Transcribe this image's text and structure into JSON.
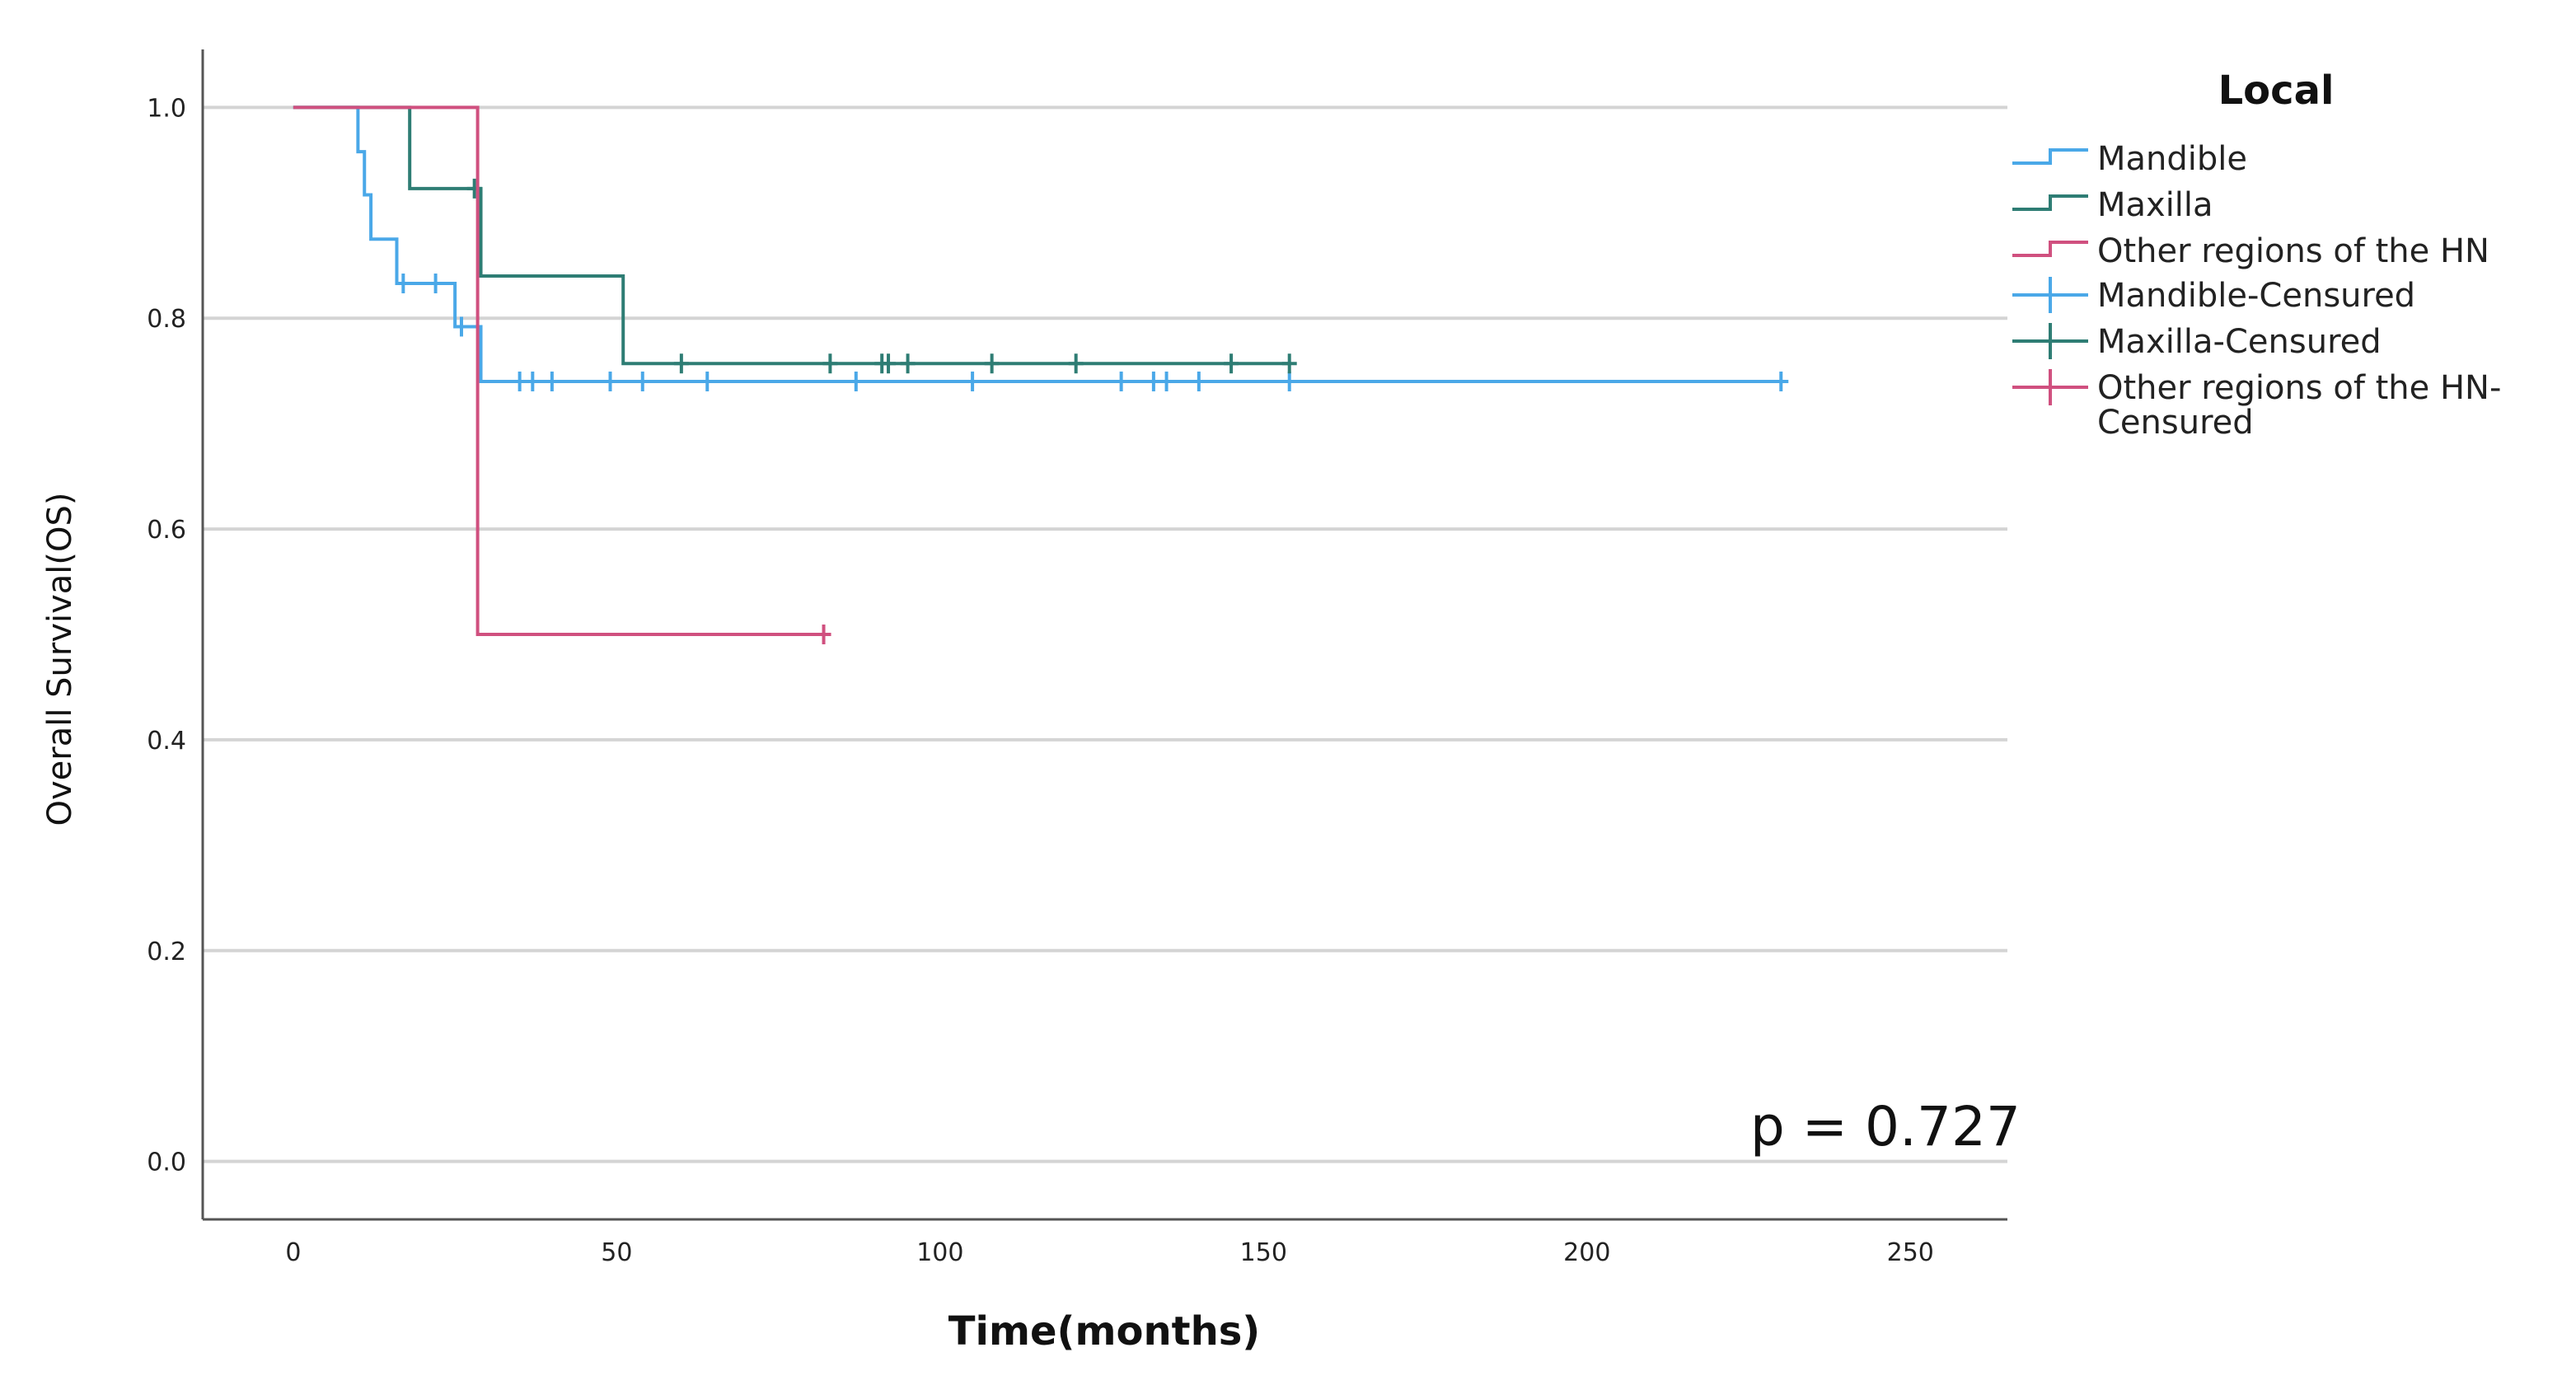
{
  "chart_data": {
    "type": "line",
    "subtype": "kaplan-meier",
    "xlabel": "Time(months)",
    "ylabel": "Overall Survival(OS)",
    "xlim": [
      -14,
      265
    ],
    "ylim": [
      -0.055,
      1.055
    ],
    "xticks": [
      0,
      50,
      100,
      150,
      200,
      250
    ],
    "xtick_labels": [
      "0",
      "50",
      "100",
      "150",
      "200",
      "250"
    ],
    "yticks": [
      0.0,
      0.2,
      0.4,
      0.6,
      0.8,
      1.0
    ],
    "ytick_labels": [
      "0.0",
      "0.2",
      "0.4",
      "0.6",
      "0.8",
      "1.0"
    ],
    "grid": "horizontal",
    "legend_title": "Local",
    "legend_position": "right",
    "annotation": "p = 0.727",
    "legend_entries": [
      {
        "label": "Mandible",
        "kind": "line",
        "color": "#4aa8e8"
      },
      {
        "label": "Maxilla",
        "kind": "line",
        "color": "#2e7d74"
      },
      {
        "label": "Other regions of the HN",
        "kind": "line",
        "color": "#d0507f"
      },
      {
        "label": "Mandible-Censured",
        "kind": "censor",
        "color": "#4aa8e8"
      },
      {
        "label": "Maxilla-Censured",
        "kind": "censor",
        "color": "#2e7d74"
      },
      {
        "label": "Other regions of the HN-",
        "label_line2": "Censured",
        "kind": "censor",
        "color": "#d0507f"
      }
    ],
    "series": [
      {
        "name": "Mandible",
        "color": "#4aa8e8",
        "steps": [
          [
            0,
            1.0
          ],
          [
            10,
            0.958
          ],
          [
            11,
            0.917
          ],
          [
            12,
            0.875
          ],
          [
            16,
            0.833
          ],
          [
            25,
            0.792
          ],
          [
            29,
            0.74
          ],
          [
            230,
            0.74
          ]
        ],
        "censored": [
          [
            17,
            0.833
          ],
          [
            22,
            0.833
          ],
          [
            26,
            0.792
          ],
          [
            35,
            0.74
          ],
          [
            37,
            0.74
          ],
          [
            40,
            0.74
          ],
          [
            49,
            0.74
          ],
          [
            54,
            0.74
          ],
          [
            64,
            0.74
          ],
          [
            87,
            0.74
          ],
          [
            105,
            0.74
          ],
          [
            128,
            0.74
          ],
          [
            133,
            0.74
          ],
          [
            135,
            0.74
          ],
          [
            140,
            0.74
          ],
          [
            154,
            0.74
          ],
          [
            230,
            0.74
          ]
        ]
      },
      {
        "name": "Maxilla",
        "color": "#2e7d74",
        "steps": [
          [
            0,
            1.0
          ],
          [
            18,
            0.923
          ],
          [
            29,
            0.84
          ],
          [
            51,
            0.757
          ],
          [
            154,
            0.757
          ]
        ],
        "censored": [
          [
            28,
            0.923
          ],
          [
            60,
            0.757
          ],
          [
            83,
            0.757
          ],
          [
            91,
            0.757
          ],
          [
            92,
            0.757
          ],
          [
            95,
            0.757
          ],
          [
            108,
            0.757
          ],
          [
            121,
            0.757
          ],
          [
            145,
            0.757
          ],
          [
            154,
            0.757
          ]
        ]
      },
      {
        "name": "Other regions of the HN",
        "color": "#d0507f",
        "steps": [
          [
            0,
            1.0
          ],
          [
            28.5,
            0.5
          ],
          [
            82,
            0.5
          ]
        ],
        "censored": [
          [
            82,
            0.5
          ]
        ]
      }
    ]
  }
}
